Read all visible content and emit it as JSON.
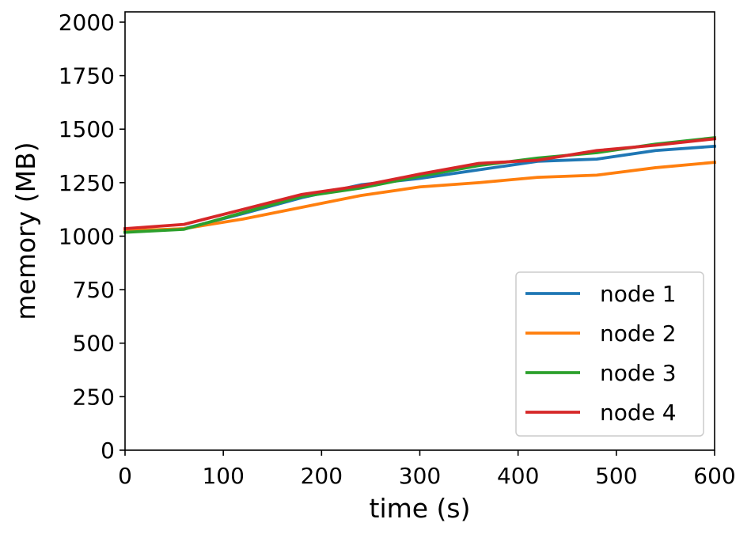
{
  "chart_data": {
    "type": "line",
    "title": "",
    "xlabel": "time (s)",
    "ylabel": "memory (MB)",
    "xlim": [
      0,
      600
    ],
    "ylim": [
      0,
      2048
    ],
    "xticks": [
      0,
      100,
      200,
      300,
      400,
      500,
      600
    ],
    "yticks": [
      0,
      250,
      500,
      750,
      1000,
      1250,
      1500,
      1750,
      2000
    ],
    "xtick_labels": [
      "0",
      "100",
      "200",
      "300",
      "400",
      "500",
      "600"
    ],
    "ytick_labels": [
      "0",
      "250",
      "500",
      "750",
      "1000",
      "1250",
      "1500",
      "1750",
      "2000"
    ],
    "grid": false,
    "legend_position": "bottom-right",
    "x": [
      0,
      60,
      120,
      180,
      240,
      300,
      360,
      420,
      480,
      540,
      600
    ],
    "series": [
      {
        "name": "node 1",
        "color": "#1f77b4",
        "values": [
          1020,
          1035,
          1105,
          1180,
          1240,
          1270,
          1310,
          1350,
          1360,
          1400,
          1420
        ]
      },
      {
        "name": "node 2",
        "color": "#ff7f0e",
        "values": [
          1025,
          1035,
          1080,
          1135,
          1190,
          1230,
          1250,
          1275,
          1285,
          1320,
          1345
        ]
      },
      {
        "name": "node 3",
        "color": "#2ca02c",
        "values": [
          1018,
          1032,
          1110,
          1185,
          1225,
          1280,
          1330,
          1365,
          1390,
          1430,
          1460
        ]
      },
      {
        "name": "node 4",
        "color": "#d62728",
        "values": [
          1035,
          1055,
          1125,
          1195,
          1235,
          1290,
          1340,
          1355,
          1400,
          1425,
          1455
        ]
      }
    ]
  }
}
